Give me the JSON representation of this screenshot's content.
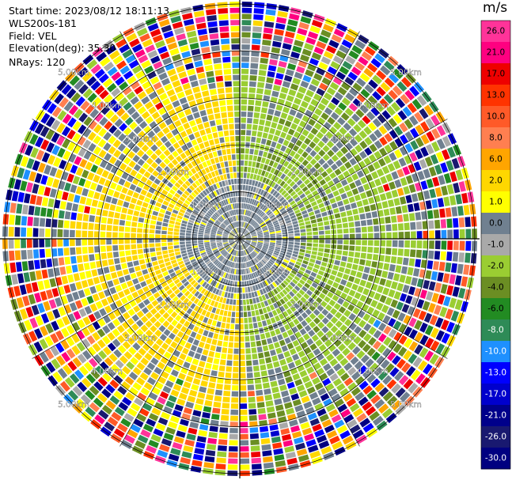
{
  "header": {
    "start_time": "Start time: 2023/08/12 18:11:13",
    "site": "WLS200s-181",
    "field": "Field: VEL",
    "elevation": "Elevation(deg): 35.30",
    "nrays": "NRays: 120"
  },
  "chart_data": {
    "type": "heatmap",
    "subtype": "radar-ppi-polar",
    "field": "VEL",
    "unit": "m/s",
    "nrays": 120,
    "elevation_deg": 35.3,
    "range_rings_km": [
      1.0,
      2.0,
      3.0,
      4.0,
      5.0
    ],
    "range_ring_labels": [
      "1.00km",
      "2.00km",
      "3.00km",
      "4.00km",
      "5.00km"
    ],
    "radial_lines_deg": [
      0,
      30,
      60,
      90,
      120,
      150,
      180,
      210,
      240,
      270,
      300,
      330
    ],
    "colorbar": {
      "ticks": [
        "26.0",
        "21.0",
        "17.0",
        "13.0",
        "10.0",
        "8.0",
        "6.0",
        "2.0",
        "1.0",
        "0.0",
        "-1.0",
        "-2.0",
        "-4.0",
        "-6.0",
        "-8.0",
        "-10.0",
        "-13.0",
        "-17.0",
        "-21.0",
        "-26.0",
        "-30.0"
      ],
      "colors": [
        "#ff3399",
        "#ff0080",
        "#ee0000",
        "#ff3300",
        "#ff5a28",
        "#ff7f50",
        "#ffa500",
        "#ffd700",
        "#ffff00",
        "#708090",
        "#a9a9a9",
        "#9acd32",
        "#6b8e23",
        "#228b22",
        "#2e8b57",
        "#1e90ff",
        "#0000ff",
        "#0000cd",
        "#00008b",
        "#191970",
        "#000080"
      ]
    },
    "pattern": {
      "near_range_km": 1.3,
      "near_value_ms": 0.0,
      "west_value_ms": 2.0,
      "east_value_ms": -2.0,
      "noise_start_km": 3.2
    }
  }
}
